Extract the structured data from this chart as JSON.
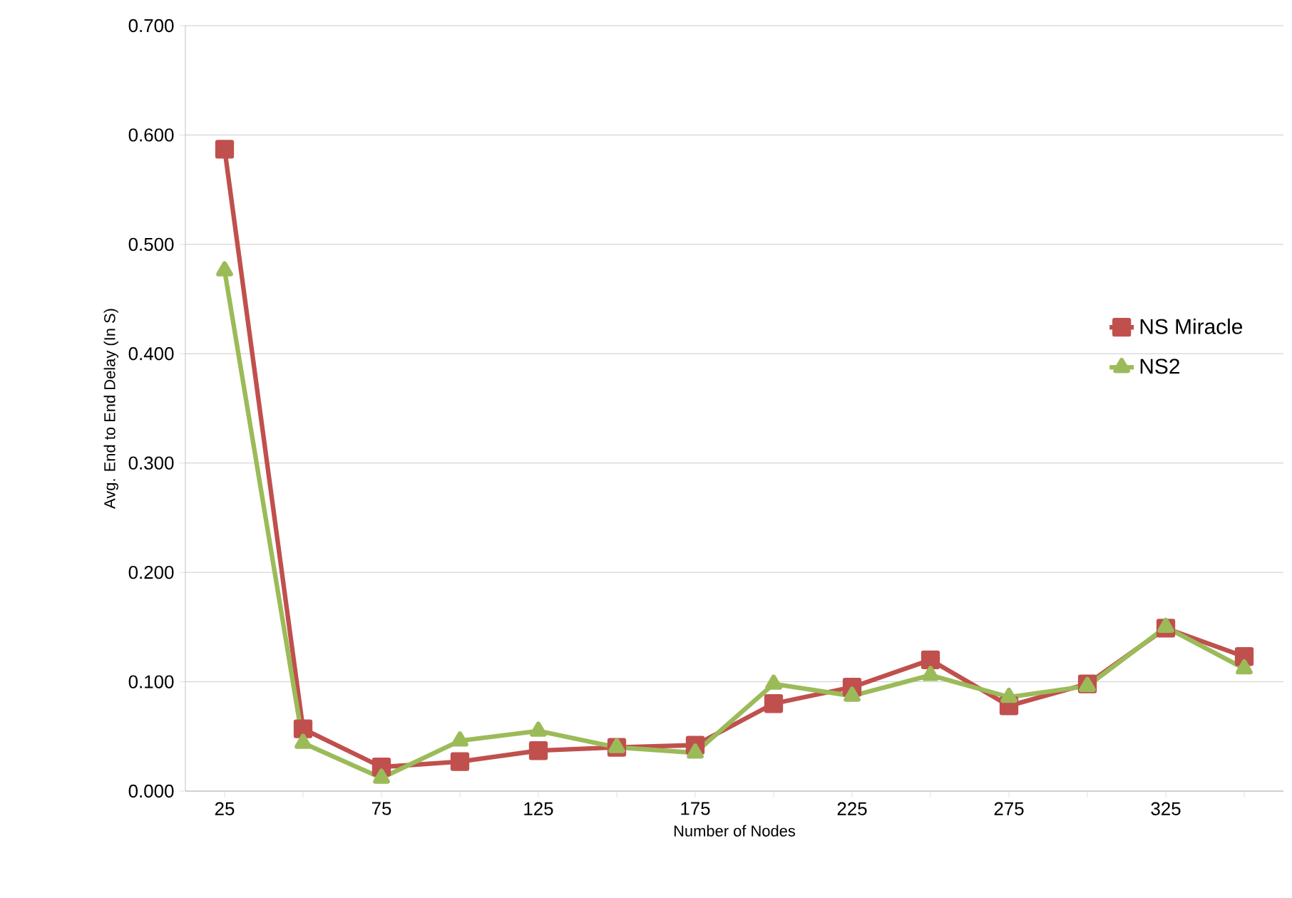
{
  "chart_data": {
    "type": "line",
    "xlabel": "Number of Nodes",
    "ylabel": "Avg. End to End Delay (In S)",
    "categories": [
      "25",
      null,
      "75",
      null,
      "125",
      null,
      "175",
      null,
      "225",
      null,
      "275",
      null,
      "325",
      null
    ],
    "series": [
      {
        "name": "NS Miracle",
        "color": "#c0504d",
        "marker": "square",
        "values": [
          0.587,
          0.057,
          0.022,
          0.027,
          0.037,
          0.04,
          0.042,
          0.08,
          0.095,
          0.12,
          0.078,
          0.098,
          0.149,
          0.123
        ]
      },
      {
        "name": "NS2",
        "color": "#9bbb59",
        "marker": "triangle",
        "values": [
          0.476,
          0.044,
          0.012,
          0.046,
          0.055,
          0.04,
          0.035,
          0.098,
          0.087,
          0.106,
          0.086,
          0.096,
          0.15,
          0.112
        ]
      }
    ],
    "ylim": [
      0,
      0.7
    ],
    "yticks": [
      {
        "value": 0,
        "label": "0.000"
      },
      {
        "value": 0.1,
        "label": "0.100"
      },
      {
        "value": 0.2,
        "label": "0.200"
      },
      {
        "value": 0.3,
        "label": "0.300"
      },
      {
        "value": 0.4,
        "label": "0.400"
      },
      {
        "value": 0.5,
        "label": "0.500"
      },
      {
        "value": 0.6,
        "label": "0.600"
      },
      {
        "value": 0.7,
        "label": "0.700"
      }
    ],
    "grid": "y",
    "legend": "right",
    "line_style": "solid"
  }
}
